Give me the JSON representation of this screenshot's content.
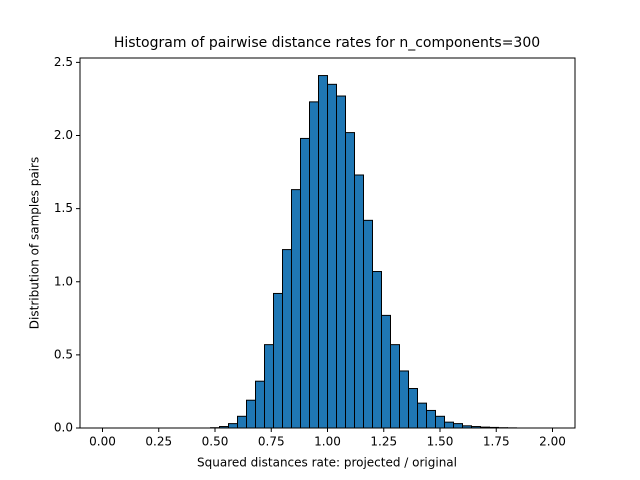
{
  "chart_data": {
    "type": "histogram",
    "title": "Histogram of pairwise distance rates for n_components=300",
    "x_label": "Squared distances rate: projected / original",
    "y_label": "Distribution of samples pairs",
    "color": "#1f77b4",
    "edge_color": "#000000",
    "bins": [
      0,
      0.04,
      0.08,
      0.12,
      0.16,
      0.2,
      0.24,
      0.28,
      0.32,
      0.36,
      0.4,
      0.44,
      0.48,
      0.52,
      0.56,
      0.6,
      0.64,
      0.68,
      0.72,
      0.76,
      0.8,
      0.84,
      0.88,
      0.92,
      0.96,
      1.0,
      1.04,
      1.08,
      1.12,
      1.16,
      1.2,
      1.24,
      1.28,
      1.32,
      1.36,
      1.4,
      1.44,
      1.48,
      1.52,
      1.56,
      1.6,
      1.64,
      1.68,
      1.72,
      1.76,
      1.8,
      1.84,
      1.88,
      1.92,
      1.96,
      2.0
    ],
    "counts": [
      0,
      0,
      0,
      0,
      0,
      0,
      0,
      0,
      0,
      0,
      0,
      0,
      0.002,
      0.01,
      0.03,
      0.08,
      0.19,
      0.32,
      0.57,
      0.92,
      1.22,
      1.63,
      1.98,
      2.23,
      2.41,
      2.35,
      2.27,
      2.02,
      1.73,
      1.42,
      1.07,
      0.77,
      0.57,
      0.39,
      0.27,
      0.17,
      0.12,
      0.08,
      0.04,
      0.03,
      0.015,
      0.01,
      0.006,
      0.004,
      0.002,
      0.001,
      0,
      0,
      0,
      0
    ],
    "xlim": [
      -0.1,
      2.1
    ],
    "ylim": [
      0,
      2.53
    ],
    "xticks": [
      {
        "value": 0,
        "label": "0.00"
      },
      {
        "value": 0.25,
        "label": "0.25"
      },
      {
        "value": 0.5,
        "label": "0.50"
      },
      {
        "value": 0.75,
        "label": "0.75"
      },
      {
        "value": 1,
        "label": "1.00"
      },
      {
        "value": 1.25,
        "label": "1.25"
      },
      {
        "value": 1.5,
        "label": "1.50"
      },
      {
        "value": 1.75,
        "label": "1.75"
      },
      {
        "value": 2,
        "label": "2.00"
      }
    ],
    "yticks": [
      {
        "value": 0,
        "label": "0.0"
      },
      {
        "value": 0.5,
        "label": "0.5"
      },
      {
        "value": 1,
        "label": "1.0"
      },
      {
        "value": 1.5,
        "label": "1.5"
      },
      {
        "value": 2,
        "label": "2.0"
      },
      {
        "value": 2.5,
        "label": "2.5"
      }
    ]
  }
}
